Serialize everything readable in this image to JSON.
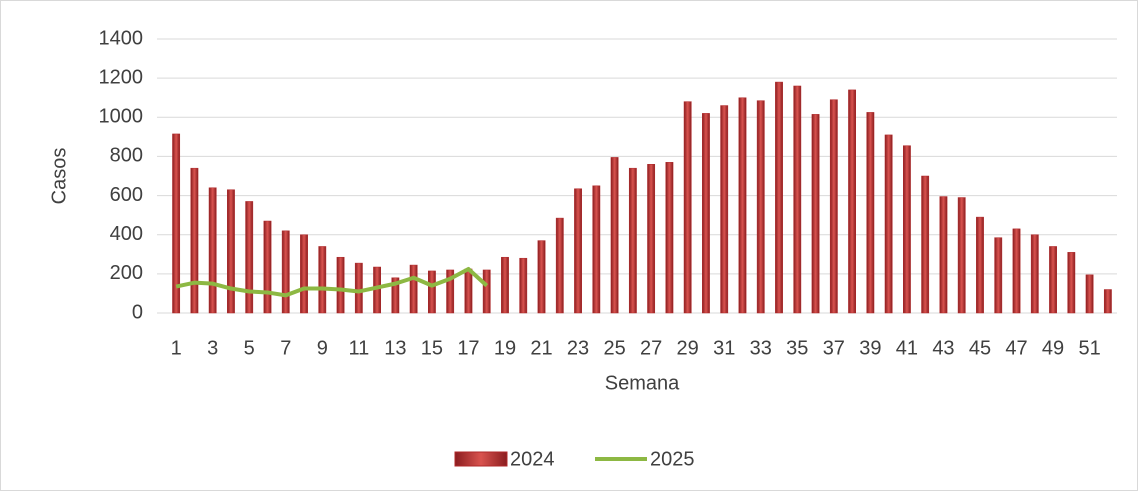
{
  "chart_data": {
    "type": "bar_line",
    "y_label": "Casos",
    "x_label": "Semana",
    "categories": [
      "1",
      null,
      "3",
      null,
      "5",
      null,
      "7",
      null,
      "9",
      null,
      "11",
      null,
      "13",
      null,
      "15",
      null,
      "17",
      null,
      "19",
      null,
      "21",
      null,
      "23",
      null,
      "25",
      null,
      "27",
      null,
      "29",
      null,
      "31",
      null,
      "33",
      null,
      "35",
      null,
      "37",
      null,
      "39",
      null,
      "41",
      null,
      "43",
      null,
      "45",
      null,
      "47",
      null,
      "49",
      null,
      "51",
      null
    ],
    "series": [
      {
        "name": "2024",
        "type": "bar",
        "color": "#b0282a",
        "values": [
          915,
          740,
          640,
          630,
          570,
          470,
          420,
          400,
          340,
          285,
          255,
          235,
          180,
          245,
          215,
          220,
          225,
          220,
          285,
          280,
          370,
          485,
          635,
          650,
          795,
          740,
          760,
          770,
          1080,
          1020,
          1060,
          1100,
          1085,
          1180,
          1160,
          1015,
          1090,
          1140,
          1025,
          910,
          855,
          700,
          595,
          590,
          490,
          385,
          430,
          400,
          340,
          310,
          195,
          120
        ]
      },
      {
        "name": "2025",
        "type": "line",
        "color": "#8db843",
        "values": [
          135,
          155,
          150,
          125,
          110,
          105,
          90,
          125,
          125,
          120,
          110,
          130,
          150,
          180,
          140,
          175,
          225,
          140,
          null,
          null,
          null,
          null,
          null,
          null,
          null,
          null,
          null,
          null,
          null,
          null,
          null,
          null,
          null,
          null,
          null,
          null,
          null,
          null,
          null,
          null,
          null,
          null,
          null,
          null,
          null,
          null,
          null,
          null,
          null,
          null,
          null,
          null
        ]
      }
    ],
    "ylim": [
      0,
      1400
    ],
    "yticks": [
      0,
      200,
      400,
      600,
      800,
      1000,
      1200,
      1400
    ],
    "grid": true,
    "legend": "bottom"
  }
}
